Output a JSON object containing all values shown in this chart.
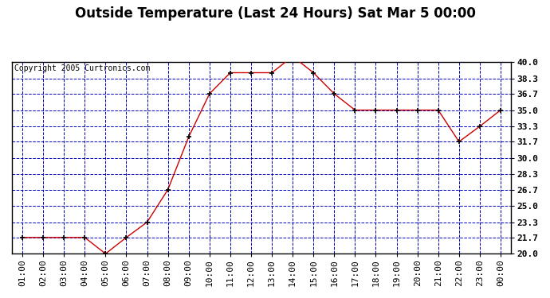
{
  "title": "Outside Temperature (Last 24 Hours) Sat Mar 5 00:00",
  "copyright": "Copyright 2005 Curtronics.com",
  "x_labels": [
    "01:00",
    "02:00",
    "03:00",
    "04:00",
    "05:00",
    "06:00",
    "07:00",
    "08:00",
    "09:00",
    "10:00",
    "11:00",
    "12:00",
    "13:00",
    "14:00",
    "15:00",
    "16:00",
    "17:00",
    "18:00",
    "19:00",
    "20:00",
    "21:00",
    "22:00",
    "23:00",
    "00:00"
  ],
  "y_values": [
    21.7,
    21.7,
    21.7,
    21.7,
    20.0,
    21.7,
    23.3,
    26.7,
    32.2,
    36.7,
    38.9,
    38.9,
    38.9,
    40.6,
    38.9,
    36.7,
    35.0,
    35.0,
    35.0,
    35.0,
    35.0,
    31.7,
    33.3,
    35.0
  ],
  "ylim_min": 20.0,
  "ylim_max": 40.0,
  "yticks": [
    20.0,
    21.7,
    23.3,
    25.0,
    26.7,
    28.3,
    30.0,
    31.7,
    33.3,
    35.0,
    36.7,
    38.3,
    40.0
  ],
  "line_color": "#cc0000",
  "marker_color": "#000000",
  "fig_bg_color": "#ffffff",
  "plot_bg_color": "#ffffff",
  "grid_color": "#0000bb",
  "title_color": "#000000",
  "title_fontsize": 12,
  "copyright_fontsize": 7,
  "tick_fontsize": 8,
  "tick_color": "#000000"
}
